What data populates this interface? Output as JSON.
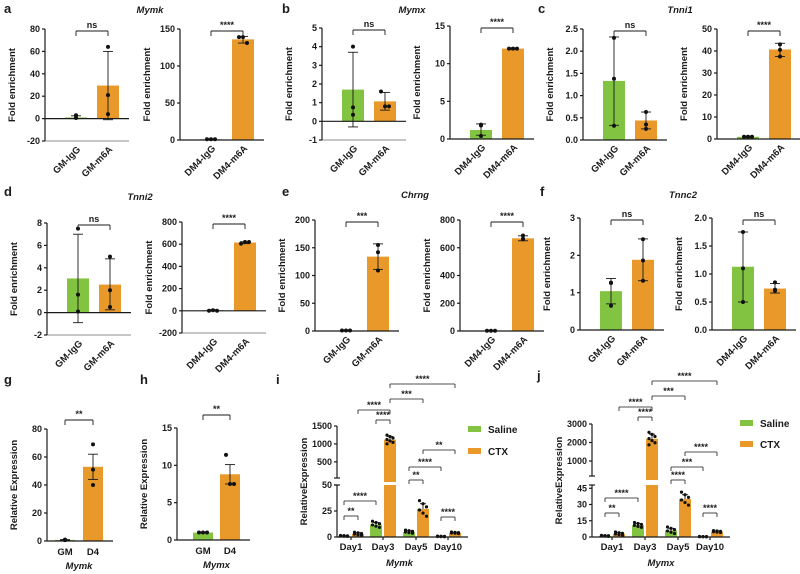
{
  "colors": {
    "control": "#82c341",
    "treatment": "#e9992a",
    "axis": "#1a1a1a"
  },
  "panels": [
    {
      "letter": "a",
      "gene": "Mymk"
    },
    {
      "letter": "b",
      "gene": "Mymx"
    },
    {
      "letter": "c",
      "gene": "Tnni1"
    },
    {
      "letter": "d",
      "gene": "Tnni2"
    },
    {
      "letter": "e",
      "gene": "Chrng"
    },
    {
      "letter": "f",
      "gene": "Tnnc2"
    },
    {
      "letter": "g",
      "gene": ""
    },
    {
      "letter": "h",
      "gene": ""
    },
    {
      "letter": "i",
      "gene": ""
    },
    {
      "letter": "j",
      "gene": ""
    }
  ],
  "chart_data": [
    {
      "id": "a1",
      "type": "bar",
      "ylabel": "Fold enrichment",
      "ylim": [
        -20,
        80
      ],
      "ticks": [
        -20,
        0,
        20,
        40,
        60,
        80
      ],
      "categories": [
        "GM-IgG",
        "GM-m6A"
      ],
      "values": [
        1,
        29.5
      ],
      "errors": [
        [
          0,
          2.5
        ],
        [
          -1,
          60
        ]
      ],
      "points": [
        [
          0.5,
          1,
          3
        ],
        [
          64,
          21,
          4
        ]
      ],
      "significance": "ns"
    },
    {
      "id": "a2",
      "type": "bar",
      "ylabel": "Fold enrichment",
      "ylim": [
        0,
        150
      ],
      "ticks": [
        0,
        50,
        100,
        150
      ],
      "categories": [
        "DM4-IgG",
        "DM4-m6A"
      ],
      "values": [
        1,
        136
      ],
      "errors": [
        [
          0.5,
          1.5
        ],
        [
          131,
          140
        ]
      ],
      "points": [
        [
          1,
          1,
          1
        ],
        [
          139,
          139,
          131
        ]
      ],
      "significance": "****"
    },
    {
      "id": "b1",
      "type": "bar",
      "ylabel": "Fold enrichment",
      "ylim": [
        -1,
        5
      ],
      "ticks": [
        -1,
        0,
        1,
        2,
        3,
        4,
        5
      ],
      "categories": [
        "GM-IgG",
        "GM-m6A"
      ],
      "values": [
        1.7,
        1.07
      ],
      "errors": [
        [
          -0.3,
          3.7
        ],
        [
          0.6,
          1.55
        ]
      ],
      "points": [
        [
          4,
          0.75,
          0.35
        ],
        [
          1.6,
          0.8,
          0.8
        ]
      ],
      "significance": "ns"
    },
    {
      "id": "b2",
      "type": "bar",
      "ylabel": "Fold enrichment",
      "ylim": [
        0,
        15
      ],
      "ticks": [
        0,
        5,
        10,
        15
      ],
      "categories": [
        "DM4-IgG",
        "DM4-m6A"
      ],
      "values": [
        1.2,
        12
      ],
      "errors": [
        [
          0.5,
          2
        ],
        [
          11.9,
          12.1
        ]
      ],
      "points": [
        [
          1.8,
          1.9,
          0.4
        ],
        [
          12,
          12,
          12
        ]
      ],
      "significance": "****"
    },
    {
      "id": "c1",
      "type": "bar",
      "ylabel": "Fold enrichment",
      "ylim": [
        0,
        2.5
      ],
      "ticks": [
        0.0,
        0.5,
        1.0,
        1.5,
        2.0,
        2.5
      ],
      "tick_decimals": 1,
      "categories": [
        "GM-IgG",
        "GM-m6A"
      ],
      "values": [
        1.33,
        0.44
      ],
      "errors": [
        [
          0.33,
          2.32
        ],
        [
          0.25,
          0.63
        ]
      ],
      "points": [
        [
          2.3,
          1.38,
          0.32
        ],
        [
          0.63,
          0.35,
          0.25
        ]
      ],
      "significance": "ns"
    },
    {
      "id": "c2",
      "type": "bar",
      "ylabel": "Fold enrichment",
      "ylim": [
        0,
        50
      ],
      "ticks": [
        0,
        10,
        20,
        30,
        40,
        50
      ],
      "categories": [
        "DM4-IgG",
        "DM4-m6A"
      ],
      "values": [
        1,
        40.7
      ],
      "errors": [
        [
          0.7,
          1.3
        ],
        [
          37.5,
          43.5
        ]
      ],
      "points": [
        [
          1,
          1,
          1
        ],
        [
          43,
          40.5,
          37.5
        ]
      ],
      "significance": "****"
    },
    {
      "id": "d1",
      "type": "bar",
      "ylabel": "Fold enrichment",
      "ylim": [
        -2,
        8
      ],
      "ticks": [
        -2,
        0,
        2,
        4,
        6,
        8
      ],
      "categories": [
        "GM-IgG",
        "GM-m6A"
      ],
      "values": [
        3.05,
        2.5
      ],
      "errors": [
        [
          -0.9,
          7
        ],
        [
          0.25,
          4.8
        ]
      ],
      "points": [
        [
          7.5,
          1.6,
          0.1
        ],
        [
          5,
          2,
          0.5
        ]
      ],
      "significance": "ns"
    },
    {
      "id": "d2",
      "type": "bar",
      "ylabel": "Fold enrichment",
      "ylim": [
        -200,
        800
      ],
      "ticks": [
        -200,
        0,
        200,
        400,
        600,
        800
      ],
      "categories": [
        "DM4-IgG",
        "DM4-m6A"
      ],
      "values": [
        5,
        615
      ],
      "errors": [
        [
          0,
          10
        ],
        [
          605,
          622
        ]
      ],
      "points": [
        [
          0,
          5,
          0
        ],
        [
          605,
          620,
          620
        ]
      ],
      "significance": "****"
    },
    {
      "id": "e1",
      "type": "bar",
      "ylabel": "Fold enrichment",
      "ylim": [
        0,
        200
      ],
      "ticks": [
        0,
        50,
        100,
        150,
        200
      ],
      "categories": [
        "GM-IgG",
        "GM-m6A"
      ],
      "values": [
        1,
        134
      ],
      "errors": [
        [
          0.5,
          1.5
        ],
        [
          111,
          157
        ]
      ],
      "points": [
        [
          1,
          1,
          1
        ],
        [
          155,
          142,
          109
        ]
      ],
      "significance": "***"
    },
    {
      "id": "e2",
      "type": "bar",
      "ylabel": "Fold enrichment",
      "ylim": [
        0,
        800
      ],
      "ticks": [
        0,
        200,
        400,
        600,
        800
      ],
      "categories": [
        "DM4-IgG",
        "DM4-m6A"
      ],
      "values": [
        2,
        668
      ],
      "errors": [
        [
          0,
          4
        ],
        [
          650,
          686
        ]
      ],
      "points": [
        [
          2,
          2,
          2
        ],
        [
          688,
          665,
          662
        ]
      ],
      "significance": "****"
    },
    {
      "id": "f1",
      "type": "bar",
      "ylabel": "Fold enrichment",
      "ylim": [
        0,
        3
      ],
      "ticks": [
        0,
        1,
        2,
        3
      ],
      "categories": [
        "GM-IgG",
        "GM-m6A"
      ],
      "values": [
        1.04,
        1.88
      ],
      "errors": [
        [
          0.7,
          1.38
        ],
        [
          1.32,
          2.44
        ]
      ],
      "points": [
        [
          1.26,
          1.27,
          0.65
        ],
        [
          2.43,
          1.86,
          1.32
        ]
      ],
      "significance": "ns"
    },
    {
      "id": "f2",
      "type": "bar",
      "ylabel": "Fold enrichment",
      "ylim": [
        0,
        2.0
      ],
      "ticks": [
        0.0,
        0.5,
        1.0,
        1.5,
        2.0
      ],
      "tick_decimals": 1,
      "categories": [
        "DM4-IgG",
        "DM4-m6A"
      ],
      "values": [
        1.13,
        0.74
      ],
      "errors": [
        [
          0.5,
          1.75
        ],
        [
          0.66,
          0.83
        ]
      ],
      "points": [
        [
          1.75,
          1.1,
          0.5
        ],
        [
          0.85,
          0.7,
          0.72
        ]
      ],
      "significance": "ns"
    },
    {
      "id": "g",
      "type": "bar",
      "ylabel": "Relative Expression",
      "xlabel": "Mymk",
      "ylim": [
        0,
        80
      ],
      "ticks": [
        0,
        20,
        40,
        60,
        80
      ],
      "categories": [
        "GM",
        "D4"
      ],
      "values": [
        0.8,
        53
      ],
      "errors": [
        [
          0.6,
          1
        ],
        [
          44,
          62
        ]
      ],
      "points": [
        [
          1,
          0.8,
          0.6
        ],
        [
          69,
          51,
          40
        ]
      ],
      "significance": "**"
    },
    {
      "id": "h",
      "type": "bar",
      "ylabel": "Relative Expression",
      "xlabel": "Mymx",
      "ylim": [
        0,
        15
      ],
      "ticks": [
        0,
        5,
        10,
        15
      ],
      "categories": [
        "GM",
        "D4"
      ],
      "values": [
        1,
        8.8
      ],
      "errors": [
        [
          1,
          1
        ],
        [
          7.5,
          10.1
        ]
      ],
      "points": [
        [
          1,
          1,
          1
        ],
        [
          11.4,
          7.5,
          7.5
        ]
      ],
      "significance": "**"
    },
    {
      "id": "i",
      "type": "bar",
      "ylabel": "RelativeExpression",
      "xlabel": "Mymk",
      "broken_axis": {
        "lower": [
          0,
          50
        ],
        "upper": [
          50,
          1500
        ]
      },
      "ticks_lower": [
        0,
        25,
        50
      ],
      "ticks_upper": [
        500,
        1000,
        1500
      ],
      "categories": [
        "Day1",
        "Day3",
        "Day5",
        "Day10"
      ],
      "series": [
        {
          "name": "Saline",
          "values": [
            1,
            12,
            5,
            0.5
          ],
          "errors": [
            0.3,
            2,
            1,
            0.2
          ]
        },
        {
          "name": "CTX",
          "values": [
            3,
            1120,
            27,
            4
          ],
          "errors": [
            1,
            90,
            5,
            0.5
          ]
        }
      ],
      "comparisons": [
        {
          "from": [
            0,
            0
          ],
          "to": [
            0,
            1
          ],
          "label": "**"
        },
        {
          "from": [
            0,
            0
          ],
          "to": [
            1,
            0
          ],
          "label": "****"
        },
        {
          "from": [
            1,
            0
          ],
          "to": [
            1,
            1
          ],
          "label": "****"
        },
        {
          "from": [
            0,
            1
          ],
          "to": [
            1,
            1
          ],
          "label": "****"
        },
        {
          "from": [
            1,
            1
          ],
          "to": [
            2,
            1
          ],
          "label": "***"
        },
        {
          "from": [
            1,
            1
          ],
          "to": [
            3,
            1
          ],
          "label": "****"
        },
        {
          "from": [
            2,
            0
          ],
          "to": [
            2,
            1
          ],
          "label": "**"
        },
        {
          "from": [
            2,
            0
          ],
          "to": [
            3,
            0
          ],
          "label": "****"
        },
        {
          "from": [
            2,
            1
          ],
          "to": [
            3,
            1
          ],
          "label": "**"
        },
        {
          "from": [
            3,
            0
          ],
          "to": [
            3,
            1
          ],
          "label": "****"
        }
      ],
      "legend": [
        "Saline",
        "CTX"
      ]
    },
    {
      "id": "j",
      "type": "bar",
      "ylabel": "RelativeExpression",
      "xlabel": "Mymx",
      "broken_axis": {
        "lower": [
          0,
          48
        ],
        "upper": [
          190,
          3000
        ]
      },
      "ticks_lower": [
        0,
        15,
        30,
        45
      ],
      "ticks_upper": [
        1000,
        2000,
        3000
      ],
      "categories": [
        "Day1",
        "Day3",
        "Day5",
        "Day10"
      ],
      "series": [
        {
          "name": "Saline",
          "values": [
            1,
            11,
            6,
            0.3
          ],
          "errors": [
            0.3,
            1.5,
            2,
            0.1
          ]
        },
        {
          "name": "CTX",
          "values": [
            3,
            2200,
            35,
            5
          ],
          "errors": [
            1,
            250,
            4,
            0.6
          ]
        }
      ],
      "comparisons": [
        {
          "from": [
            0,
            0
          ],
          "to": [
            0,
            1
          ],
          "label": "**"
        },
        {
          "from": [
            0,
            0
          ],
          "to": [
            1,
            0
          ],
          "label": "****"
        },
        {
          "from": [
            1,
            0
          ],
          "to": [
            1,
            1
          ],
          "label": "****"
        },
        {
          "from": [
            0,
            1
          ],
          "to": [
            1,
            1
          ],
          "label": "****"
        },
        {
          "from": [
            1,
            1
          ],
          "to": [
            2,
            1
          ],
          "label": "***"
        },
        {
          "from": [
            1,
            1
          ],
          "to": [
            3,
            1
          ],
          "label": "****"
        },
        {
          "from": [
            2,
            0
          ],
          "to": [
            2,
            1
          ],
          "label": "****"
        },
        {
          "from": [
            2,
            0
          ],
          "to": [
            3,
            0
          ],
          "label": "***"
        },
        {
          "from": [
            2,
            1
          ],
          "to": [
            3,
            1
          ],
          "label": "****"
        },
        {
          "from": [
            3,
            0
          ],
          "to": [
            3,
            1
          ],
          "label": "****"
        }
      ],
      "legend": [
        "Saline",
        "CTX"
      ]
    }
  ]
}
